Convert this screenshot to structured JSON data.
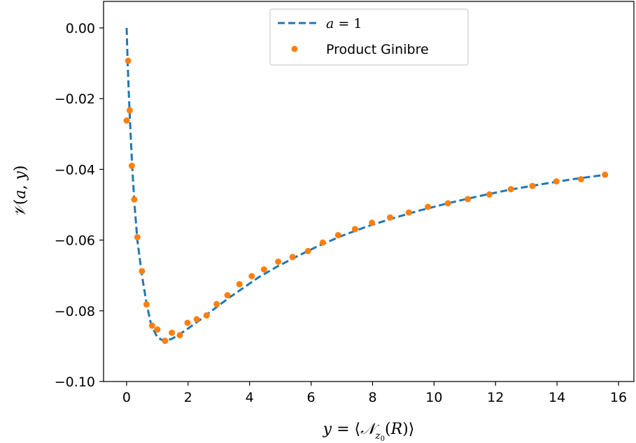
{
  "chart_data": {
    "type": "scatter",
    "xlabel": "y = ⟨𝒩z₀(R)⟩",
    "ylabel": "𝒱(a, y)",
    "xlim": [
      -0.75,
      16.5
    ],
    "ylim": [
      -0.1,
      0.0075
    ],
    "xticks": [
      0,
      2,
      4,
      6,
      8,
      10,
      12,
      14,
      16
    ],
    "xtick_labels": [
      "0",
      "2",
      "4",
      "6",
      "8",
      "10",
      "12",
      "14",
      "16"
    ],
    "yticks": [
      0.0,
      -0.02,
      -0.04,
      -0.06,
      -0.08,
      -0.1
    ],
    "ytick_labels": [
      "0.00",
      "−0.02",
      "−0.04",
      "−0.06",
      "−0.08",
      "−0.10"
    ],
    "grid": false,
    "legend_position": "top-center",
    "colors": {
      "line": "#1f77b4",
      "points": "#ff7f0e"
    },
    "series": [
      {
        "name": "a = 1",
        "kind": "dashed-line",
        "x": [
          0.0,
          0.03,
          0.07,
          0.12,
          0.18,
          0.25,
          0.35,
          0.5,
          0.65,
          0.8,
          1.0,
          1.2,
          1.45,
          1.7,
          2.0,
          2.4,
          2.8,
          3.3,
          3.8,
          4.3,
          4.9,
          5.5,
          6.2,
          7.0,
          7.8,
          8.6,
          9.5,
          10.5,
          11.5,
          12.5,
          13.5,
          14.5,
          15.6
        ],
        "y": [
          0.0,
          -0.009,
          -0.018,
          -0.028,
          -0.039,
          -0.049,
          -0.06,
          -0.07,
          -0.078,
          -0.084,
          -0.0875,
          -0.0885,
          -0.088,
          -0.0868,
          -0.085,
          -0.0825,
          -0.0798,
          -0.0765,
          -0.0735,
          -0.0705,
          -0.0675,
          -0.0648,
          -0.0618,
          -0.0588,
          -0.0562,
          -0.054,
          -0.0517,
          -0.0495,
          -0.0475,
          -0.0457,
          -0.0442,
          -0.0428,
          -0.0415
        ]
      },
      {
        "name": "Product Ginibre",
        "kind": "points",
        "x": [
          0.0,
          0.05,
          0.1,
          0.17,
          0.25,
          0.35,
          0.5,
          0.65,
          0.83,
          1.0,
          1.25,
          1.47,
          1.73,
          1.98,
          2.28,
          2.6,
          2.93,
          3.28,
          3.67,
          4.07,
          4.47,
          4.93,
          5.4,
          5.9,
          6.38,
          6.88,
          7.43,
          7.98,
          8.57,
          9.18,
          9.8,
          10.45,
          11.1,
          11.8,
          12.5,
          13.2,
          13.98,
          14.78,
          15.56
        ],
        "y": [
          -0.0262,
          -0.0093,
          -0.0233,
          -0.039,
          -0.0485,
          -0.0592,
          -0.0688,
          -0.0782,
          -0.0842,
          -0.0853,
          -0.0885,
          -0.0862,
          -0.0869,
          -0.0834,
          -0.0824,
          -0.0813,
          -0.0781,
          -0.0756,
          -0.0725,
          -0.0702,
          -0.0683,
          -0.0661,
          -0.0648,
          -0.0631,
          -0.0607,
          -0.0586,
          -0.0569,
          -0.0551,
          -0.0536,
          -0.0522,
          -0.0506,
          -0.0496,
          -0.0484,
          -0.0471,
          -0.0456,
          -0.0447,
          -0.0434,
          -0.0428,
          -0.0415
        ]
      }
    ]
  }
}
